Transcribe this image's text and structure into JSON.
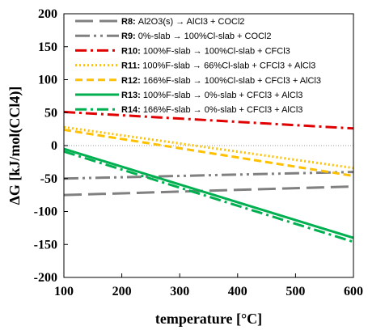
{
  "chart_data": {
    "type": "line",
    "xlabel": "temperature [°C]",
    "ylabel": "ΔG [kJ/mol(CCl4)]",
    "xlim": [
      100,
      600
    ],
    "ylim": [
      -200,
      200
    ],
    "x_ticks": [
      "100",
      "200",
      "300",
      "400",
      "500",
      "600"
    ],
    "y_ticks": [
      "200",
      "150",
      "100",
      "50",
      "0",
      "-50",
      "-100",
      "-150",
      "-200"
    ],
    "grid": false,
    "zero_line": true,
    "legend_position": "top",
    "series": [
      {
        "id": "R8:",
        "name": "Al2O3(s) → AlCl3 + COCl2",
        "color": "#808080",
        "dash": "long-dash",
        "x": [
          100,
          600
        ],
        "values": [
          -75,
          -62
        ]
      },
      {
        "id": "R9:",
        "name": "0%-slab → 100%Cl-slab + COCl2",
        "color": "#808080",
        "dash": "dash-dot-dot",
        "x": [
          100,
          600
        ],
        "values": [
          -50,
          -40
        ]
      },
      {
        "id": "R10:",
        "name": "100%F-slab → 100%Cl-slab + CFCl3",
        "color": "#e00000",
        "dash": "dash-dot",
        "x": [
          100,
          600
        ],
        "values": [
          51,
          26
        ]
      },
      {
        "id": "R11:",
        "name": "100%F-slab → 66%Cl-slab + CFCl3 + AlCl3",
        "color": "#ffc000",
        "dash": "dotted",
        "x": [
          100,
          600
        ],
        "values": [
          28,
          -34
        ]
      },
      {
        "id": "R12:",
        "name": "166%F-slab → 100%Cl-slab + CFCl3 + AlCl3",
        "color": "#ffc000",
        "dash": "dashed",
        "x": [
          100,
          600
        ],
        "values": [
          24,
          -46
        ]
      },
      {
        "id": "R13:",
        "name": "100%F-slab → 0%-slab + CFCl3 + AlCl3",
        "color": "#00b050",
        "dash": "solid",
        "x": [
          100,
          600
        ],
        "values": [
          -5,
          -140
        ]
      },
      {
        "id": "R14:",
        "name": "166%F-slab → 0%-slab + CFCl3 + AlCl3",
        "color": "#00b050",
        "dash": "dash-dot",
        "x": [
          100,
          600
        ],
        "values": [
          -9,
          -146
        ]
      }
    ]
  }
}
